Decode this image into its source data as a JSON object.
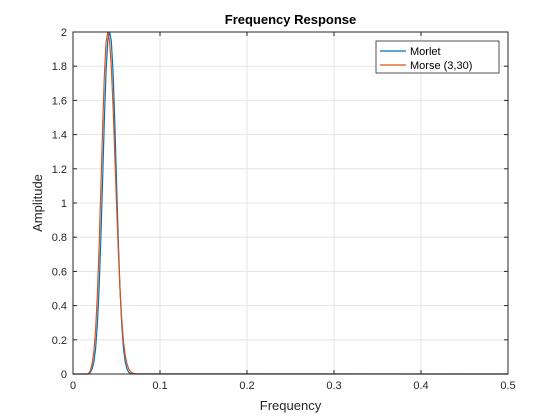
{
  "chart_data": {
    "type": "line",
    "title": "Frequency Response",
    "xlabel": "Frequency",
    "ylabel": "Amplitude",
    "xlim": [
      0,
      0.5
    ],
    "ylim": [
      0,
      2
    ],
    "xticks": [
      0,
      0.1,
      0.2,
      0.3,
      0.4,
      0.5
    ],
    "xtick_labels": [
      "0",
      "0.1",
      "0.2",
      "0.3",
      "0.4",
      "0.5"
    ],
    "yticks": [
      0,
      0.2,
      0.4,
      0.6,
      0.8,
      1,
      1.2,
      1.4,
      1.6,
      1.8,
      2
    ],
    "ytick_labels": [
      "0",
      "0.2",
      "0.4",
      "0.6",
      "0.8",
      "1",
      "1.2",
      "1.4",
      "1.6",
      "1.8",
      "2"
    ],
    "grid": true,
    "legend_position": "top-right",
    "series": [
      {
        "name": "Morlet",
        "color": "#0072BD",
        "x": [
          0,
          0.018,
          0.02,
          0.022,
          0.024,
          0.026,
          0.028,
          0.03,
          0.032,
          0.034,
          0.036,
          0.038,
          0.04,
          0.042,
          0.044,
          0.046,
          0.048,
          0.05,
          0.052,
          0.054,
          0.056,
          0.058,
          0.06,
          0.062,
          0.064,
          0.066,
          0.068,
          0.07,
          0.5
        ],
        "y": [
          0,
          0,
          0.01,
          0.03,
          0.07,
          0.15,
          0.29,
          0.5,
          0.79,
          1.13,
          1.48,
          1.77,
          1.95,
          2.0,
          1.95,
          1.77,
          1.48,
          1.13,
          0.79,
          0.5,
          0.29,
          0.15,
          0.07,
          0.03,
          0.01,
          0.004,
          0.001,
          0,
          0
        ]
      },
      {
        "name": "Morse (3,30)",
        "color": "#D95319",
        "x": [
          0,
          0.016,
          0.018,
          0.02,
          0.022,
          0.024,
          0.026,
          0.028,
          0.03,
          0.032,
          0.034,
          0.036,
          0.038,
          0.04,
          0.042,
          0.044,
          0.046,
          0.048,
          0.05,
          0.052,
          0.054,
          0.056,
          0.058,
          0.06,
          0.062,
          0.064,
          0.066,
          0.068,
          0.07,
          0.072,
          0.5
        ],
        "y": [
          0,
          0,
          0.004,
          0.02,
          0.06,
          0.13,
          0.26,
          0.46,
          0.74,
          1.08,
          1.43,
          1.74,
          1.94,
          2.0,
          1.95,
          1.8,
          1.57,
          1.29,
          1.0,
          0.73,
          0.5,
          0.32,
          0.19,
          0.11,
          0.06,
          0.03,
          0.015,
          0.007,
          0.003,
          0.001,
          0
        ]
      }
    ]
  }
}
